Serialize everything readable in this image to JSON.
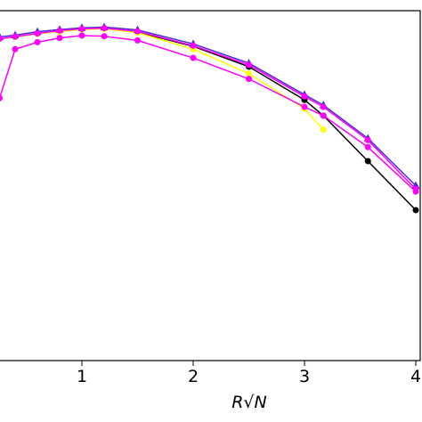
{
  "chart_data": {
    "type": "line",
    "xlabel": "R√N",
    "x": [
      0.26,
      0.4,
      0.6,
      0.8,
      1.0,
      1.2,
      1.5,
      2.0,
      2.5,
      3.0,
      3.17,
      3.57,
      4.0
    ],
    "series": [
      {
        "color": "#000000",
        "marker": "circle",
        "values": [
          0.92,
          0.925,
          0.934,
          0.942,
          0.947,
          0.949,
          0.939,
          0.898,
          0.84,
          0.745,
          0.7,
          0.57,
          0.43
        ]
      },
      {
        "color": "#ffff00",
        "marker": "circle",
        "values": [
          0.92,
          0.925,
          0.934,
          0.94,
          0.946,
          0.948,
          0.937,
          0.89,
          0.82,
          0.72,
          0.66,
          null,
          null
        ]
      },
      {
        "color": "#ff00ff",
        "marker": "circle",
        "values": [
          0.75,
          0.89,
          0.91,
          0.922,
          0.929,
          0.927,
          0.915,
          0.865,
          0.805,
          0.725,
          0.7,
          0.61,
          0.483
        ]
      },
      {
        "color": "#4b2bd6",
        "marker": "triangle",
        "values": [
          0.925,
          0.93,
          0.94,
          0.946,
          0.951,
          0.953,
          0.945,
          0.905,
          0.85,
          0.76,
          0.73,
          0.635,
          0.5
        ]
      },
      {
        "color": "#ff00ff",
        "marker": "circle",
        "values": [
          0.92,
          0.926,
          0.935,
          0.943,
          0.948,
          0.95,
          0.941,
          0.9,
          0.845,
          0.755,
          0.725,
          0.63,
          0.49
        ]
      }
    ],
    "xlim": [
      0.264,
      4.04
    ],
    "ylim": [
      0,
      1
    ],
    "xticks": [
      1,
      2,
      3,
      4
    ]
  }
}
